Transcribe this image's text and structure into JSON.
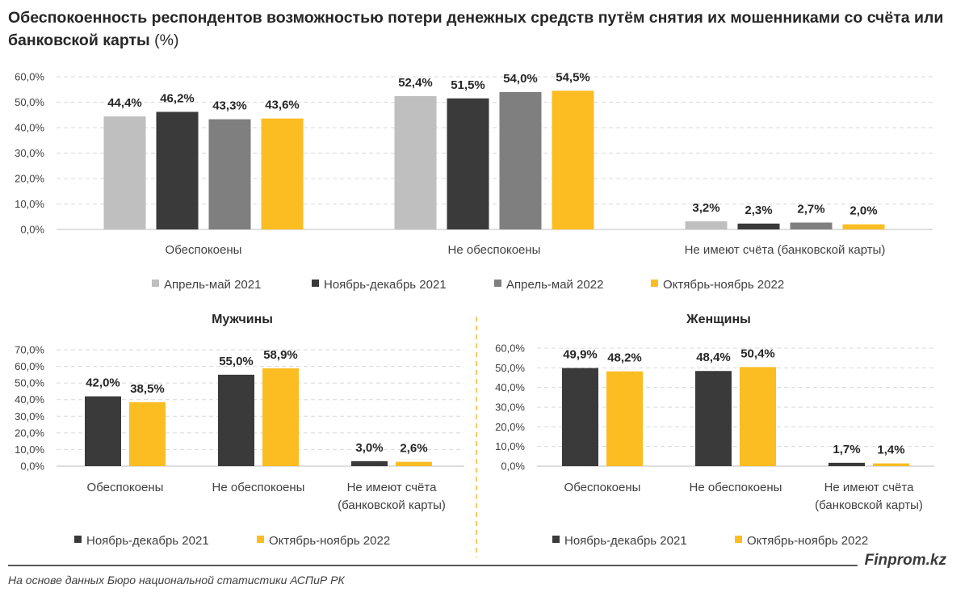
{
  "title": {
    "text": "Обеспокоенность респондентов возможностью потери денежных средств путём снятия их мошенниками со счёта или банковской карты",
    "unit": "(%)"
  },
  "brand": "Finprom.kz",
  "source": "На основе данных Бюро национальной статистики АСПиР РК",
  "colors": {
    "Апрель-май 2021": "#bfbfbf",
    "Ноябрь-декабрь 2021": "#3a3a3a",
    "Апрель-май 2022": "#7f7f7f",
    "Октябрь-ноябрь 2022": "#fbbd22",
    "gridline": "#d9d9d9",
    "divider": "#f5b82e"
  },
  "chart_data": [
    {
      "type": "bar",
      "title": "",
      "categories": [
        "Обеспокоены",
        "Не обеспокоены",
        "Не имеют счёта (банковской карты)"
      ],
      "series": [
        {
          "name": "Апрель-май 2021",
          "values": [
            44.4,
            52.4,
            3.2
          ],
          "labels": [
            "44,4%",
            "52,4%",
            "3,2%"
          ]
        },
        {
          "name": "Ноябрь-декабрь 2021",
          "values": [
            46.2,
            51.5,
            2.3
          ],
          "labels": [
            "46,2%",
            "51,5%",
            "2,3%"
          ]
        },
        {
          "name": "Апрель-май 2022",
          "values": [
            43.3,
            54.0,
            2.7
          ],
          "labels": [
            "43,3%",
            "54,0%",
            "2,7%"
          ]
        },
        {
          "name": "Октябрь-ноябрь 2022",
          "values": [
            43.6,
            54.5,
            2.0
          ],
          "labels": [
            "43,6%",
            "54,5%",
            "2,0%"
          ]
        }
      ],
      "yticks": [
        "0,0%",
        "10,0%",
        "20,0%",
        "30,0%",
        "40,0%",
        "50,0%",
        "60,0%"
      ],
      "ylim": [
        0,
        60
      ],
      "grid": true,
      "legend": "bottom"
    },
    {
      "type": "bar",
      "title": "Мужчины",
      "categories": [
        "Обеспокоены",
        "Не обеспокоены",
        "Не имеют счёта (банковской карты)"
      ],
      "series": [
        {
          "name": "Ноябрь-декабрь 2021",
          "values": [
            42.0,
            55.0,
            3.0
          ],
          "labels": [
            "42,0%",
            "55,0%",
            "3,0%"
          ]
        },
        {
          "name": "Октябрь-ноябрь 2022",
          "values": [
            38.5,
            58.9,
            2.6
          ],
          "labels": [
            "38,5%",
            "58,9%",
            "2,6%"
          ]
        }
      ],
      "yticks": [
        "0,0%",
        "10,0%",
        "20,0%",
        "30,0%",
        "40,0%",
        "50,0%",
        "60,0%",
        "70,0%"
      ],
      "ylim": [
        0,
        70
      ],
      "grid": true,
      "legend": "bottom"
    },
    {
      "type": "bar",
      "title": "Женщины",
      "categories": [
        "Обеспокоены",
        "Не обеспокоены",
        "Не имеют счёта (банковской карты)"
      ],
      "series": [
        {
          "name": "Ноябрь-декабрь 2021",
          "values": [
            49.9,
            48.4,
            1.7
          ],
          "labels": [
            "49,9%",
            "48,4%",
            "1,7%"
          ]
        },
        {
          "name": "Октябрь-ноябрь 2022",
          "values": [
            48.2,
            50.4,
            1.4
          ],
          "labels": [
            "48,2%",
            "50,4%",
            "1,4%"
          ]
        }
      ],
      "yticks": [
        "0,0%",
        "10,0%",
        "20,0%",
        "30,0%",
        "40,0%",
        "50,0%",
        "60,0%"
      ],
      "ylim": [
        0,
        60
      ],
      "grid": true,
      "legend": "bottom"
    }
  ]
}
